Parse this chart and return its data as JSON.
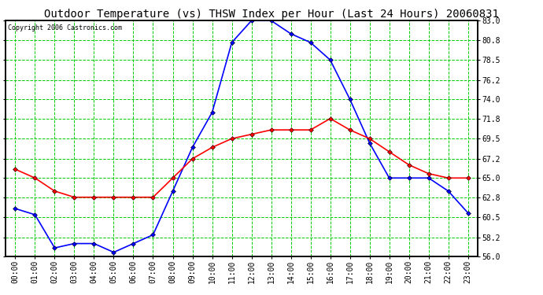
{
  "title": "Outdoor Temperature (vs) THSW Index per Hour (Last 24 Hours) 20060831",
  "copyright": "Copyright 2006 Castronics.com",
  "hours": [
    "00:00",
    "01:00",
    "02:00",
    "03:00",
    "04:00",
    "05:00",
    "06:00",
    "07:00",
    "08:00",
    "09:00",
    "10:00",
    "11:00",
    "12:00",
    "13:00",
    "14:00",
    "15:00",
    "16:00",
    "17:00",
    "18:00",
    "19:00",
    "20:00",
    "21:00",
    "22:00",
    "23:00"
  ],
  "temp_blue": [
    61.5,
    60.8,
    57.0,
    57.5,
    57.5,
    56.5,
    57.5,
    58.5,
    63.5,
    68.5,
    72.5,
    80.5,
    83.0,
    83.0,
    81.5,
    80.5,
    78.5,
    74.0,
    69.0,
    65.0,
    65.0,
    65.0,
    63.5,
    61.0
  ],
  "thsw_red": [
    66.0,
    65.0,
    63.5,
    62.8,
    62.8,
    62.8,
    62.8,
    62.8,
    65.0,
    67.2,
    68.5,
    69.5,
    70.0,
    70.5,
    70.5,
    70.5,
    71.8,
    70.5,
    69.5,
    68.0,
    66.5,
    65.5,
    65.0,
    65.0
  ],
  "ylim_min": 56.0,
  "ylim_max": 83.0,
  "yticks": [
    56.0,
    58.2,
    60.5,
    62.8,
    65.0,
    67.2,
    69.5,
    71.8,
    74.0,
    76.2,
    78.5,
    80.8,
    83.0
  ],
  "blue_color": "#0000ff",
  "red_color": "#ff0000",
  "bg_color": "#ffffff",
  "grid_color": "#00cc00",
  "border_color": "#000000",
  "title_fontsize": 10,
  "copyright_fontsize": 6,
  "tick_fontsize": 7,
  "marker_size": 3
}
